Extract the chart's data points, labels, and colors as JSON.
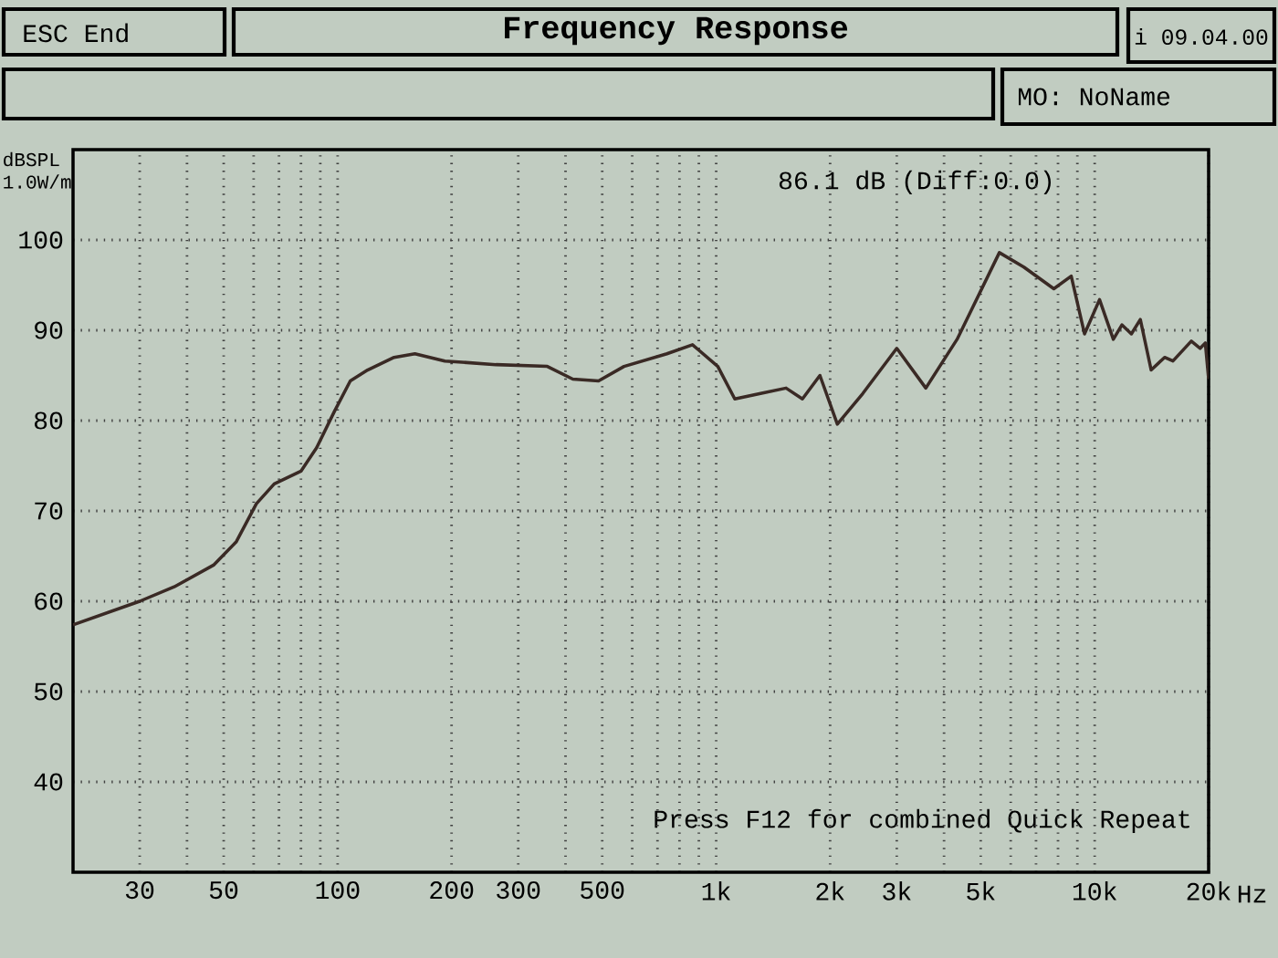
{
  "chart_data": {
    "type": "line",
    "title": "Frequency Response",
    "ylabel": "dBSPL 1.0W/m",
    "annotations": [
      "ESC End",
      "i 09.04.00",
      "MO: NoName",
      "86.1 dB (Diff:0.0)",
      "Press F12 for combined Quick Repeat"
    ],
    "log": "x",
    "grid": true,
    "xlim": [
      20,
      20000
    ],
    "ylim": [
      30,
      110
    ],
    "xticks": [
      30,
      {
        "value": 40,
        "label": null
      },
      50,
      {
        "value": 60,
        "label": null
      },
      {
        "value": 70,
        "label": null
      },
      {
        "value": 80,
        "label": null
      },
      {
        "value": 90,
        "label": null
      },
      100,
      200,
      300,
      {
        "value": 400,
        "label": null
      },
      500,
      {
        "value": 600,
        "label": null
      },
      {
        "value": 700,
        "label": null
      },
      {
        "value": 800,
        "label": null
      },
      {
        "value": 900,
        "label": null
      },
      {
        "value": 1000,
        "label": "1k"
      },
      {
        "value": 2000,
        "label": "2k"
      },
      {
        "value": 3000,
        "label": "3k"
      },
      {
        "value": 4000,
        "label": null
      },
      {
        "value": 5000,
        "label": "5k"
      },
      {
        "value": 6000,
        "label": null
      },
      {
        "value": 7000,
        "label": null
      },
      {
        "value": 8000,
        "label": null
      },
      {
        "value": 9000,
        "label": null
      },
      {
        "value": 10000,
        "label": "10k"
      },
      {
        "value": 20000,
        "label": "20k"
      }
    ],
    "xlabel": "Hz",
    "yticks": [
      40,
      50,
      60,
      70,
      80,
      90,
      100
    ],
    "x": [
      20,
      30,
      37,
      47,
      54,
      61,
      68,
      80,
      88,
      98,
      108,
      120,
      141,
      160,
      192,
      262,
      358,
      418,
      489,
      571,
      741,
      866,
      1010,
      1120,
      1310,
      1530,
      1690,
      1880,
      2090,
      2440,
      3000,
      3580,
      4330,
      5600,
      6500,
      7800,
      8670,
      9400,
      10300,
      11200,
      11800,
      12500,
      13200,
      14100,
      15300,
      16100,
      18000,
      19000,
      19600,
      20000
    ],
    "series": [
      {
        "color": "#3a2a25",
        "values": [
          57.4,
          60,
          61.6,
          64,
          66.6,
          70.8,
          73,
          74.4,
          77,
          81,
          84.4,
          85.6,
          87,
          87.4,
          86.6,
          86.2,
          86,
          84.6,
          84.4,
          86,
          87.4,
          88.4,
          86,
          82.4,
          83,
          83.6,
          82.4,
          85,
          79.6,
          83,
          88,
          83.6,
          89,
          98.6,
          97,
          94.6,
          96,
          89.6,
          93.4,
          89,
          90.6,
          89.6,
          91.2,
          85.6,
          87,
          86.6,
          88.8,
          88,
          88.6,
          84.6
        ]
      }
    ]
  }
}
